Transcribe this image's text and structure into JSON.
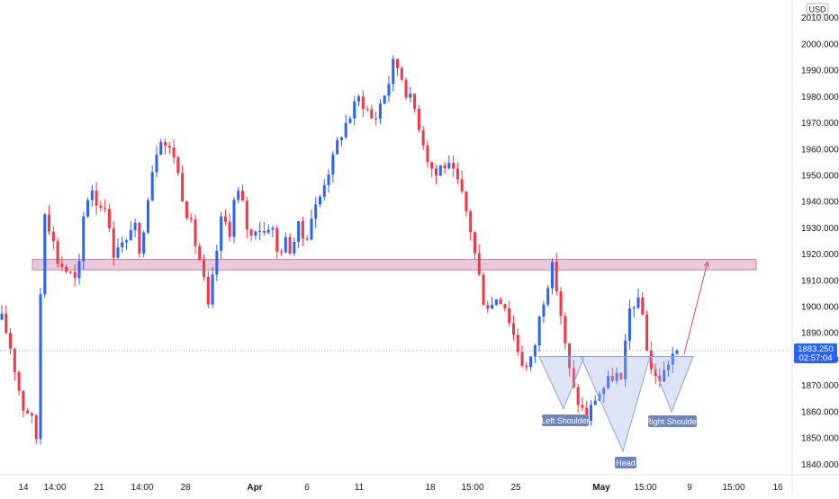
{
  "chart_data": {
    "type": "candlestick",
    "currency": "USD",
    "ylim": [
      1836,
      2014
    ],
    "y_ticks": [
      1840,
      1850,
      1860,
      1870,
      1880,
      1890,
      1900,
      1910,
      1920,
      1930,
      1940,
      1950,
      1960,
      1970,
      1980,
      1990,
      2000,
      2010
    ],
    "y_tick_labels": [
      "1840.000",
      "1850.000",
      "1860.000",
      "1870.000",
      "1880.000",
      "1890.000",
      "1900.000",
      "1910.000",
      "1920.000",
      "1930.000",
      "1940.000",
      "1950.000",
      "1960.000",
      "1970.000",
      "1980.000",
      "1990.000",
      "2000.000",
      "2010.000"
    ],
    "x_ticks": [
      {
        "label": "14",
        "bold": false
      },
      {
        "label": "14:00",
        "bold": false
      },
      {
        "label": "21",
        "bold": false
      },
      {
        "label": "14:00",
        "bold": false
      },
      {
        "label": "28",
        "bold": false
      },
      {
        "label": "Apr",
        "bold": true
      },
      {
        "label": "6",
        "bold": false
      },
      {
        "label": "11",
        "bold": false
      },
      {
        "label": "18",
        "bold": false
      },
      {
        "label": "15:00",
        "bold": false
      },
      {
        "label": "25",
        "bold": false
      },
      {
        "label": "May",
        "bold": true
      },
      {
        "label": "15:00",
        "bold": false
      },
      {
        "label": "9",
        "bold": false
      },
      {
        "label": "15:00",
        "bold": false
      },
      {
        "label": "16",
        "bold": false
      }
    ],
    "path": [
      1895,
      1888,
      1875,
      1862,
      1860,
      1850,
      1940,
      1930,
      1918,
      1915,
      1912,
      1908,
      1938,
      1946,
      1938,
      1940,
      1920,
      1925,
      1922,
      1935,
      1918,
      1940,
      1955,
      1966,
      1960,
      1958,
      1945,
      1935,
      1925,
      1915,
      1898,
      1918,
      1935,
      1928,
      1945,
      1938,
      1925,
      1932,
      1928,
      1933,
      1920,
      1925,
      1922,
      1930,
      1925,
      1935,
      1940,
      1950,
      1955,
      1965,
      1970,
      1975,
      1980,
      1975,
      1970,
      1978,
      1984,
      1994,
      1988,
      1980,
      1975,
      1965,
      1955,
      1950,
      1955,
      1952,
      1948,
      1940,
      1930,
      1915,
      1902,
      1900,
      1905,
      1901,
      1892,
      1883,
      1876,
      1880,
      1895,
      1908,
      1915,
      1900,
      1880,
      1868,
      1862,
      1857,
      1865,
      1868,
      1871,
      1875,
      1870,
      1898,
      1903,
      1897,
      1878,
      1872,
      1874,
      1881,
      1883.25
    ],
    "last_price": "1883.250",
    "countdown": "02:57:04",
    "resistance_zone": {
      "low": 1914,
      "high": 1918
    },
    "current_price_line": 1883.25,
    "pattern_labels": [
      "Left Shoulder",
      "Head",
      "Right Shoulder"
    ],
    "triangles": [
      {
        "top_left": 1881,
        "top_right": 1881,
        "apex": 1861,
        "label": "Left Shoulder"
      },
      {
        "top_left": 1881,
        "top_right": 1881,
        "apex": 1845,
        "label": "Head"
      },
      {
        "top_left": 1881,
        "top_right": 1881,
        "apex": 1860,
        "label": "Right Shoulder"
      }
    ],
    "projection": {
      "from": 1882,
      "to": 1917
    },
    "up_color": "#2962ff",
    "down_color": "#f23645",
    "zone_color": "#e1b8cf"
  }
}
